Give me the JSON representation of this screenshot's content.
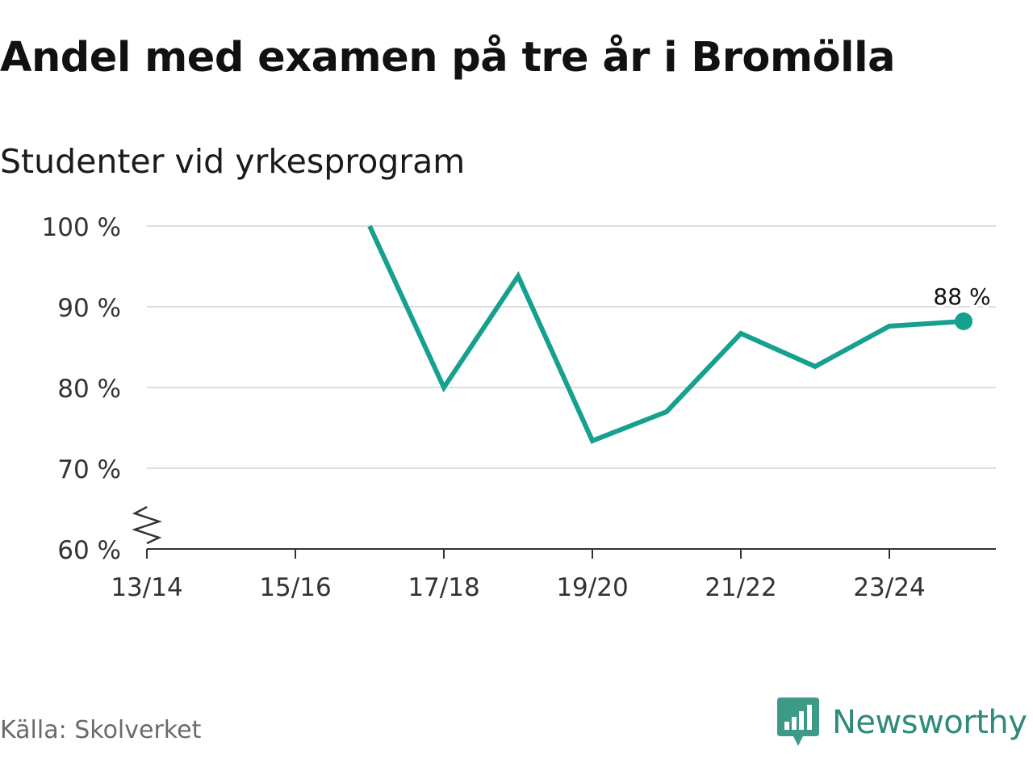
{
  "title": "Andel med examen på tre år i Bromölla",
  "subtitle": "Studenter vid yrkesprogram",
  "source": "Källa: Skolverket",
  "brand": {
    "name": "Newsworthy",
    "icon": "newsworthy-logo-icon",
    "color": "#2e8b7a"
  },
  "chart_data": {
    "type": "line",
    "x": [
      "13/14",
      "14/15",
      "15/16",
      "16/17",
      "17/18",
      "18/19",
      "19/20",
      "20/21",
      "21/22",
      "22/23",
      "23/24",
      "24/25"
    ],
    "x_tick_labels": [
      "13/14",
      "15/16",
      "17/18",
      "19/20",
      "21/22",
      "23/24"
    ],
    "series": [
      {
        "values": [
          null,
          null,
          null,
          100,
          80,
          93.8,
          73.4,
          77,
          86.7,
          82.6,
          87.6,
          88.2
        ],
        "color": "#16a090"
      }
    ],
    "y_ticks": [
      60,
      70,
      80,
      90,
      100
    ],
    "y_tick_labels": [
      "60 %",
      "70 %",
      "80 %",
      "90 %",
      "100 %"
    ],
    "ylim": [
      60,
      100
    ],
    "y_axis_break": true,
    "grid": true,
    "end_label": "88 %",
    "end_marker": true,
    "xlabel": "",
    "ylabel": ""
  }
}
